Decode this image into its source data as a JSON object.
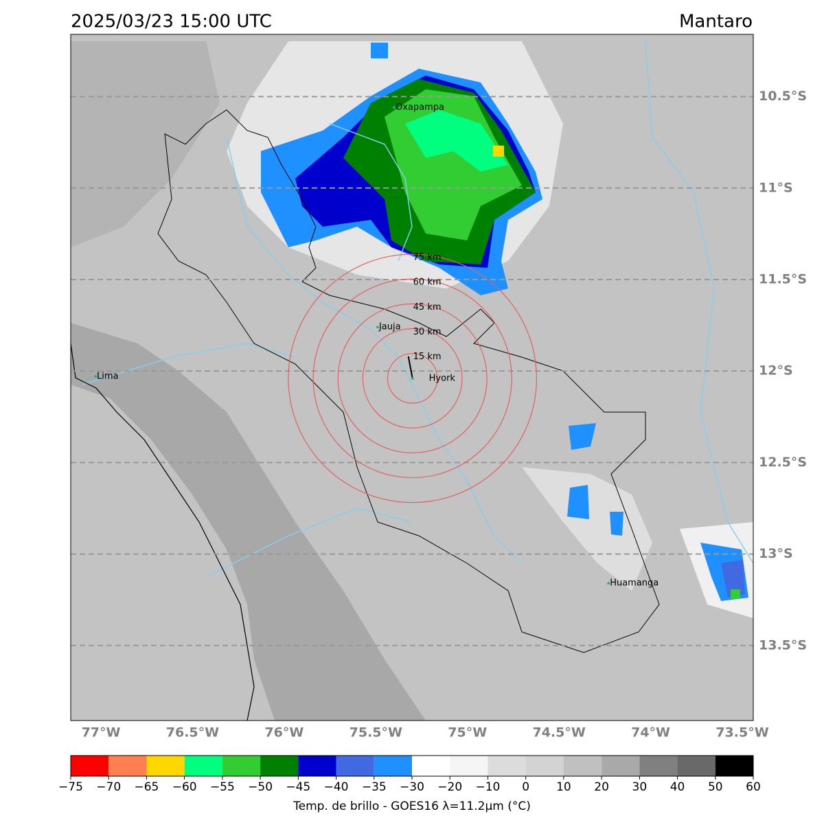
{
  "header": {
    "title": "2025/03/23 15:00 UTC",
    "region": "Mantaro"
  },
  "map": {
    "extent": {
      "lon": [
        -77.165,
        -73.44
      ],
      "lat": [
        -13.91,
        -10.16
      ]
    },
    "lat_ticks": [
      {
        "value": -10.5,
        "label": "10.5°S"
      },
      {
        "value": -11,
        "label": "11°S"
      },
      {
        "value": -11.5,
        "label": "11.5°S"
      },
      {
        "value": -12,
        "label": "12°S"
      },
      {
        "value": -12.5,
        "label": "12.5°S"
      },
      {
        "value": -13,
        "label": "13°S"
      },
      {
        "value": -13.5,
        "label": "13.5°S"
      }
    ],
    "lon_ticks": [
      {
        "value": -77,
        "label": "77°W"
      },
      {
        "value": -76.5,
        "label": "76.5°W"
      },
      {
        "value": -76,
        "label": "76°W"
      },
      {
        "value": -75.5,
        "label": "75.5°W"
      },
      {
        "value": -75,
        "label": "75°W"
      },
      {
        "value": -74.5,
        "label": "74.5°W"
      },
      {
        "value": -74,
        "label": "74°W"
      },
      {
        "value": -73.5,
        "label": "73.5°W"
      }
    ],
    "places": [
      {
        "name": "Oxapampa",
        "lon": -75.4,
        "lat": -10.56
      },
      {
        "name": "Jauja",
        "lon": -75.49,
        "lat": -11.76
      },
      {
        "name": "Hyork",
        "lon": -75.3,
        "lat": -12.04
      },
      {
        "name": "Lima",
        "lon": -77.03,
        "lat": -12.03
      },
      {
        "name": "Huamanga",
        "lon": -74.23,
        "lat": -13.16
      }
    ],
    "rings": [
      {
        "radius": 15,
        "label": "15 km"
      },
      {
        "radius": 30,
        "label": "30 km"
      },
      {
        "radius": 45,
        "label": "45 km"
      },
      {
        "radius": 60,
        "label": "60 km"
      },
      {
        "radius": 75,
        "label": "75 km"
      }
    ]
  },
  "colorbar": {
    "label": "Temp. de brillo - GOES16 λ=11.2μm (°C)",
    "colors": [
      "#ff0000",
      "#ff7f50",
      "#ffd700",
      "#00ff7f",
      "#32cd32",
      "#008000",
      "#0000cd",
      "#4169e1",
      "#1e90ff",
      "#ffffff",
      "#f5f5f5",
      "#dcdcdc",
      "#d3d3d3",
      "#c0c0c0",
      "#a9a9a9",
      "#808080",
      "#696969",
      "#000000"
    ],
    "ticks": [
      {
        "value": -75,
        "label": "−75"
      },
      {
        "value": -70,
        "label": "−70"
      },
      {
        "value": -65,
        "label": "−65"
      },
      {
        "value": -60,
        "label": "−60"
      },
      {
        "value": -55,
        "label": "−55"
      },
      {
        "value": -50,
        "label": "−50"
      },
      {
        "value": -45,
        "label": "−45"
      },
      {
        "value": -40,
        "label": "−40"
      },
      {
        "value": -35,
        "label": "−35"
      },
      {
        "value": -30,
        "label": "−30"
      },
      {
        "value": -20,
        "label": "−20"
      },
      {
        "value": -10,
        "label": "−10"
      },
      0,
      10,
      20,
      30,
      40,
      50,
      60
    ]
  }
}
